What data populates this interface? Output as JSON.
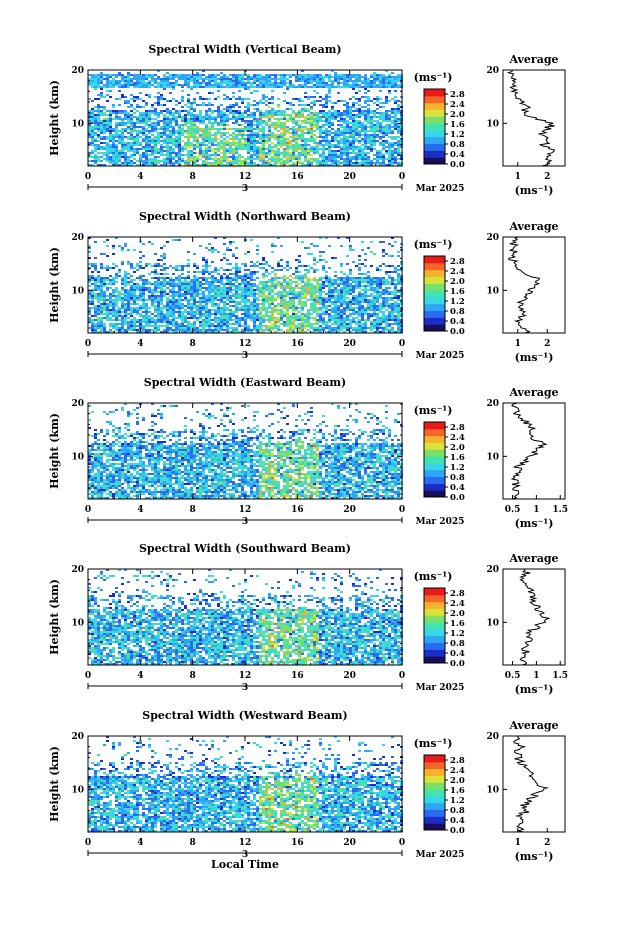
{
  "chart_data": [
    {
      "type": "heatmap",
      "title": "Spectral Width (Vertical Beam)",
      "ylabel": "Height (km)",
      "y_ticks": [
        "20",
        "10"
      ],
      "x_ticks": [
        "0",
        "4",
        "8",
        "12",
        "16",
        "20",
        "0"
      ],
      "date_label": "Mar 2025",
      "day_label": "3",
      "ylim": [
        2,
        20
      ],
      "xlim": [
        0,
        24
      ],
      "colorbar": {
        "unit": "(ms⁻¹)",
        "ticks": [
          "2.8",
          "2.4",
          "2.0",
          "1.6",
          "1.2",
          "0.8",
          "0.4",
          "0.0"
        ],
        "range": [
          0,
          3.0
        ]
      },
      "average_profile": {
        "title": "Average",
        "xlabel": "(ms⁻¹)",
        "x_ticks": [
          "1",
          "2"
        ],
        "y_ticks": [
          "20",
          "10"
        ],
        "xlim": [
          0.5,
          2.6
        ],
        "height": [
          2,
          3,
          4,
          5,
          6,
          7,
          8,
          9,
          10,
          11,
          12,
          13,
          14,
          15,
          16,
          17,
          18,
          19,
          20
        ],
        "value": [
          1.9,
          2.1,
          2.0,
          2.2,
          1.9,
          2.1,
          1.8,
          2.0,
          2.2,
          1.5,
          1.2,
          1.3,
          1.1,
          1.0,
          0.9,
          0.8,
          0.9,
          0.7,
          0.8
        ]
      }
    },
    {
      "type": "heatmap",
      "title": "Spectral Width (Northward Beam)",
      "ylabel": "Height (km)",
      "y_ticks": [
        "20",
        "10"
      ],
      "x_ticks": [
        "0",
        "4",
        "8",
        "12",
        "16",
        "20",
        "0"
      ],
      "date_label": "Mar 2025",
      "day_label": "3",
      "ylim": [
        2,
        20
      ],
      "xlim": [
        0,
        24
      ],
      "colorbar": {
        "unit": "(ms⁻¹)",
        "ticks": [
          "2.8",
          "2.4",
          "2.0",
          "1.6",
          "1.2",
          "0.8",
          "0.4",
          "0.0"
        ],
        "range": [
          0,
          3.0
        ]
      },
      "average_profile": {
        "title": "Average",
        "xlabel": "(ms⁻¹)",
        "x_ticks": [
          "1",
          "2"
        ],
        "y_ticks": [
          "20",
          "10"
        ],
        "xlim": [
          0.5,
          2.6
        ],
        "height": [
          2,
          3,
          4,
          5,
          6,
          7,
          8,
          9,
          10,
          11,
          12,
          13,
          14,
          15,
          16,
          17,
          18,
          19,
          20
        ],
        "value": [
          1.3,
          1.2,
          1.0,
          1.1,
          1.2,
          1.0,
          1.1,
          1.3,
          1.4,
          1.6,
          1.7,
          1.3,
          1.0,
          0.9,
          0.8,
          0.9,
          0.8,
          0.9,
          1.0
        ]
      }
    },
    {
      "type": "heatmap",
      "title": "Spectral Width (Eastward Beam)",
      "ylabel": "Height (km)",
      "y_ticks": [
        "20",
        "10"
      ],
      "x_ticks": [
        "0",
        "4",
        "8",
        "12",
        "16",
        "20",
        "0"
      ],
      "date_label": "Mar 2025",
      "day_label": "3",
      "ylim": [
        2,
        20
      ],
      "xlim": [
        0,
        24
      ],
      "colorbar": {
        "unit": "(ms⁻¹)",
        "ticks": [
          "2.8",
          "2.4",
          "2.0",
          "1.6",
          "1.2",
          "0.8",
          "0.4",
          "0.0"
        ],
        "range": [
          0,
          3.0
        ]
      },
      "average_profile": {
        "title": "Average",
        "xlabel": "(ms⁻¹)",
        "x_ticks": [
          "0.5",
          "1",
          "1.5"
        ],
        "y_ticks": [
          "20",
          "10"
        ],
        "xlim": [
          0.3,
          1.6
        ],
        "height": [
          2,
          3,
          4,
          5,
          6,
          7,
          8,
          9,
          10,
          11,
          12,
          13,
          14,
          15,
          16,
          17,
          18,
          19,
          20
        ],
        "value": [
          0.55,
          0.6,
          0.5,
          0.6,
          0.55,
          0.65,
          0.6,
          0.75,
          0.9,
          1.0,
          1.15,
          1.0,
          0.9,
          0.95,
          0.85,
          0.7,
          0.6,
          0.55,
          0.6
        ]
      }
    },
    {
      "type": "heatmap",
      "title": "Spectral Width (Southward Beam)",
      "ylabel": "Height (km)",
      "y_ticks": [
        "20",
        "10"
      ],
      "x_ticks": [
        "0",
        "4",
        "8",
        "12",
        "16",
        "20",
        "0"
      ],
      "date_label": "Mar 2025",
      "day_label": "3",
      "ylim": [
        2,
        20
      ],
      "xlim": [
        0,
        24
      ],
      "colorbar": {
        "unit": "(ms⁻¹)",
        "ticks": [
          "2.8",
          "2.4",
          "2.0",
          "1.6",
          "1.2",
          "0.8",
          "0.4",
          "0.0"
        ],
        "range": [
          0,
          3.0
        ]
      },
      "average_profile": {
        "title": "Average",
        "xlabel": "(ms⁻¹)",
        "x_ticks": [
          "0.5",
          "1",
          "1.5"
        ],
        "y_ticks": [
          "20",
          "10"
        ],
        "xlim": [
          0.3,
          1.6
        ],
        "height": [
          2,
          3,
          4,
          5,
          6,
          7,
          8,
          9,
          10,
          11,
          12,
          13,
          14,
          15,
          16,
          17,
          18,
          19,
          20
        ],
        "value": [
          0.7,
          0.75,
          0.8,
          0.75,
          0.85,
          0.9,
          0.8,
          1.0,
          1.1,
          1.2,
          1.1,
          1.0,
          0.95,
          0.9,
          0.85,
          0.8,
          0.7,
          0.8,
          0.75
        ]
      }
    },
    {
      "type": "heatmap",
      "title": "Spectral Width (Westward Beam)",
      "ylabel": "Height (km)",
      "xlabel": "Local Time",
      "y_ticks": [
        "20",
        "10"
      ],
      "x_ticks": [
        "0",
        "4",
        "8",
        "12",
        "16",
        "20",
        "0"
      ],
      "date_label": "Mar 2025",
      "day_label": "3",
      "ylim": [
        2,
        20
      ],
      "xlim": [
        0,
        24
      ],
      "colorbar": {
        "unit": "(ms⁻¹)",
        "ticks": [
          "2.8",
          "2.4",
          "2.0",
          "1.6",
          "1.2",
          "0.8",
          "0.4",
          "0.0"
        ],
        "range": [
          0,
          3.0
        ]
      },
      "average_profile": {
        "title": "Average",
        "xlabel": "(ms⁻¹)",
        "x_ticks": [
          "1",
          "2"
        ],
        "y_ticks": [
          "20",
          "10"
        ],
        "xlim": [
          0.5,
          2.6
        ],
        "height": [
          2,
          3,
          4,
          5,
          6,
          7,
          8,
          9,
          10,
          11,
          12,
          13,
          14,
          15,
          16,
          17,
          18,
          19,
          20
        ],
        "value": [
          1.1,
          1.0,
          1.2,
          1.1,
          1.3,
          1.2,
          1.4,
          1.6,
          1.9,
          1.7,
          1.5,
          1.4,
          1.2,
          1.1,
          1.0,
          1.0,
          1.1,
          0.9,
          1.0
        ]
      }
    }
  ],
  "colormap": [
    "#1a0e5c",
    "#1b2fc8",
    "#2a6cf0",
    "#2fa6f5",
    "#37d6e8",
    "#43e3b0",
    "#7ae06a",
    "#d9e23a",
    "#f7b12c",
    "#f5642a",
    "#e81a1a"
  ]
}
